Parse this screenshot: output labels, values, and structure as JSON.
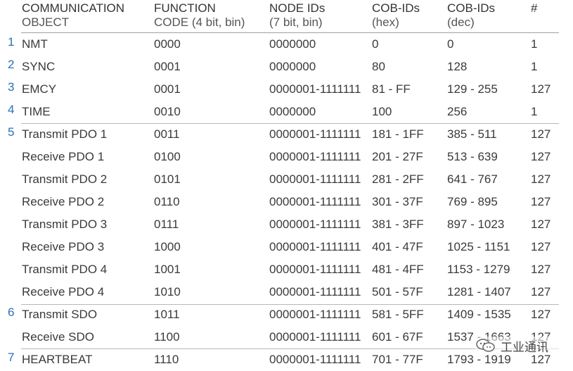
{
  "headers": [
    {
      "main": "COMMUNICATION",
      "sub": "OBJECT"
    },
    {
      "main": "FUNCTION",
      "sub": "CODE (4 bit, bin)"
    },
    {
      "main": "NODE IDs",
      "sub": "(7 bit, bin)"
    },
    {
      "main": "COB-IDs",
      "sub": "(hex)"
    },
    {
      "main": "COB-IDs",
      "sub": "(dec)"
    },
    {
      "main": "#",
      "sub": ""
    }
  ],
  "rows": [
    {
      "num": "1",
      "obj": "NMT",
      "fc": "0000",
      "node": "0000000",
      "hex": "0",
      "dec": "0",
      "cnt": "1"
    },
    {
      "num": "2",
      "obj": "SYNC",
      "fc": "0001",
      "node": "0000000",
      "hex": "80",
      "dec": "128",
      "cnt": "1"
    },
    {
      "num": "3",
      "obj": "EMCY",
      "fc": "0001",
      "node": "0000001-1111111",
      "hex": "81 - FF",
      "dec": "129 - 255",
      "cnt": "127"
    },
    {
      "num": "4",
      "obj": "TIME",
      "fc": "0010",
      "node": "0000000",
      "hex": "100",
      "dec": "256",
      "cnt": "1"
    },
    {
      "num": "5",
      "obj": "Transmit PDO 1",
      "fc": "0011",
      "node": "0000001-1111111",
      "hex": "181 - 1FF",
      "dec": "385 - 511",
      "cnt": "127"
    },
    {
      "num": "",
      "obj": "Receive PDO 1",
      "fc": "0100",
      "node": "0000001-1111111",
      "hex": "201 - 27F",
      "dec": "513 - 639",
      "cnt": "127"
    },
    {
      "num": "",
      "obj": "Transmit PDO 2",
      "fc": "0101",
      "node": "0000001-1111111",
      "hex": "281 - 2FF",
      "dec": "641 - 767",
      "cnt": "127"
    },
    {
      "num": "",
      "obj": "Receive PDO 2",
      "fc": "0110",
      "node": "0000001-1111111",
      "hex": "301 - 37F",
      "dec": "769 - 895",
      "cnt": "127"
    },
    {
      "num": "",
      "obj": "Transmit PDO 3",
      "fc": "0111",
      "node": "0000001-1111111",
      "hex": "381 - 3FF",
      "dec": "897 - 1023",
      "cnt": "127"
    },
    {
      "num": "",
      "obj": "Receive PDO 3",
      "fc": "1000",
      "node": "0000001-1111111",
      "hex": "401 - 47F",
      "dec": "1025 - 1151",
      "cnt": "127"
    },
    {
      "num": "",
      "obj": "Transmit PDO 4",
      "fc": "1001",
      "node": "0000001-1111111",
      "hex": "481 - 4FF",
      "dec": "1153 - 1279",
      "cnt": "127"
    },
    {
      "num": "",
      "obj": "Receive PDO 4",
      "fc": "1010",
      "node": "0000001-1111111",
      "hex": "501 - 57F",
      "dec": "1281 - 1407",
      "cnt": "127"
    },
    {
      "num": "6",
      "obj": "Transmit SDO",
      "fc": "1011",
      "node": "0000001-1111111",
      "hex": "581 - 5FF",
      "dec": "1409 - 1535",
      "cnt": "127"
    },
    {
      "num": "",
      "obj": "Receive SDO",
      "fc": "1100",
      "node": "0000001-1111111",
      "hex": "601 - 67F",
      "dec": "1537 - 1663",
      "cnt": "127"
    },
    {
      "num": "7",
      "obj": "HEARTBEAT",
      "fc": "1110",
      "node": "0000001-1111111",
      "hex": "701 - 77F",
      "dec": "1793 - 1919",
      "cnt": "127"
    }
  ],
  "watermark": {
    "text": "工业通讯",
    "icon": "wechat-icon"
  },
  "colors": {
    "group_number": "#2a6fb8",
    "text": "#3a3a3a",
    "rule": "#b8b8b8"
  }
}
